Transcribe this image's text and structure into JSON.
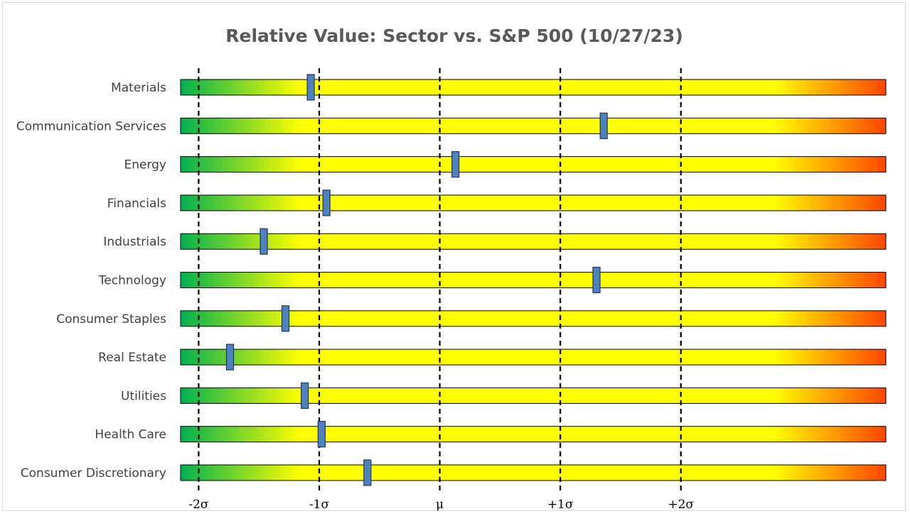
{
  "chart_data": {
    "type": "bar",
    "title": "Relative Value: Sector vs. S&P 500 (10/27/23)",
    "xlabel": "",
    "ylabel": "",
    "units": "standard deviations from mean",
    "xlim": [
      -2.15,
      3.7
    ],
    "ticks": [
      {
        "value": -2,
        "label": "-2σ"
      },
      {
        "value": -1,
        "label": "-1σ"
      },
      {
        "value": 0,
        "label": "μ"
      },
      {
        "value": 1,
        "label": "+1σ"
      },
      {
        "value": 2,
        "label": "+2σ"
      }
    ],
    "gradient_colors": {
      "green": "#00b050",
      "yellow": "#ffff00",
      "orange": "#ff4500"
    },
    "marker_color": "#4f81bd",
    "categories": [
      "Materials",
      "Communication Services",
      "Energy",
      "Financials",
      "Industrials",
      "Technology",
      "Consumer Staples",
      "Real Estate",
      "Utilities",
      "Health Care",
      "Consumer Discretionary"
    ],
    "values": [
      -1.07,
      1.36,
      0.13,
      -0.94,
      -1.46,
      1.3,
      -1.28,
      -1.74,
      -1.12,
      -0.98,
      -0.6
    ]
  }
}
